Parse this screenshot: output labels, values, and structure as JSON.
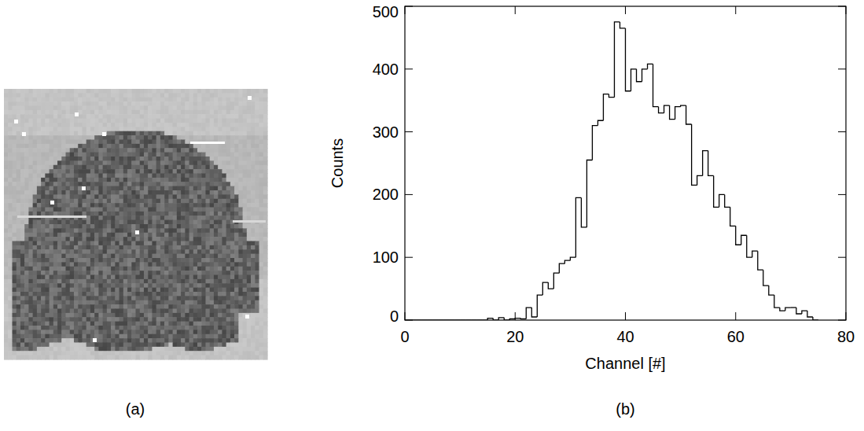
{
  "chart_data": [
    {
      "type": "image",
      "label": "(a)"
    },
    {
      "type": "histogram",
      "label": "(b)",
      "x_label": "Channel [#]",
      "y_label": "Counts",
      "color": "#000000",
      "bins": [
        0,
        1,
        2,
        3,
        4,
        5,
        6,
        7,
        8,
        9,
        10,
        11,
        12,
        13,
        14,
        15,
        16,
        17,
        18,
        19,
        20,
        21,
        22,
        23,
        24,
        25,
        26,
        27,
        28,
        29,
        30,
        31,
        32,
        33,
        34,
        35,
        36,
        37,
        38,
        39,
        40,
        41,
        42,
        43,
        44,
        45,
        46,
        47,
        48,
        49,
        50,
        51,
        52,
        53,
        54,
        55,
        56,
        57,
        58,
        59,
        60,
        61,
        62,
        63,
        64,
        65,
        66,
        67,
        68,
        69,
        70,
        71,
        72,
        73,
        74,
        75
      ],
      "counts": [
        0,
        0,
        0,
        0,
        0,
        0,
        0,
        0,
        0,
        0,
        0,
        0,
        0,
        0,
        0,
        3,
        0,
        4,
        0,
        2,
        3,
        2,
        20,
        5,
        40,
        60,
        50,
        75,
        90,
        95,
        100,
        195,
        148,
        255,
        310,
        318,
        360,
        355,
        475,
        465,
        365,
        400,
        380,
        400,
        408,
        340,
        330,
        342,
        320,
        340,
        342,
        312,
        215,
        230,
        270,
        230,
        180,
        200,
        180,
        150,
        120,
        135,
        100,
        110,
        80,
        55,
        40,
        20,
        15,
        20,
        20,
        10,
        15,
        5,
        0
      ],
      "xlim": [
        0,
        80
      ],
      "ylim": [
        0,
        500
      ],
      "xticks": [
        0,
        20,
        40,
        60,
        80
      ],
      "yticks": [
        0,
        100,
        200,
        300,
        400,
        500
      ]
    }
  ]
}
